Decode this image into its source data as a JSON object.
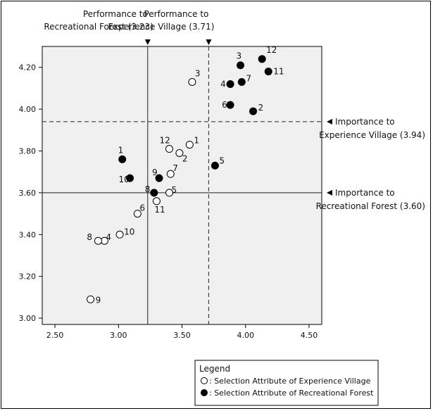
{
  "chart_data": {
    "type": "scatter",
    "xlim": [
      2.4,
      4.6
    ],
    "ylim": [
      2.97,
      4.3
    ],
    "x_ticks": [
      "2.50",
      "3.00",
      "3.50",
      "4.00",
      "4.50"
    ],
    "y_ticks": [
      "3.00",
      "3.20",
      "3.40",
      "3.60",
      "3.80",
      "4.00",
      "4.20"
    ],
    "grid": false,
    "series": [
      {
        "marker": "open-circle",
        "points": [
          {
            "label": "1",
            "x": 3.56,
            "y": 3.83
          },
          {
            "label": "2",
            "x": 3.48,
            "y": 3.79
          },
          {
            "label": "3",
            "x": 3.58,
            "y": 4.13
          },
          {
            "label": "4",
            "x": 2.89,
            "y": 3.37
          },
          {
            "label": "5",
            "x": 3.4,
            "y": 3.6
          },
          {
            "label": "6",
            "x": 3.15,
            "y": 3.5
          },
          {
            "label": "7",
            "x": 3.41,
            "y": 3.69
          },
          {
            "label": "8",
            "x": 2.84,
            "y": 3.37
          },
          {
            "label": "9",
            "x": 2.78,
            "y": 3.09
          },
          {
            "label": "10",
            "x": 3.01,
            "y": 3.4
          },
          {
            "label": "11",
            "x": 3.3,
            "y": 3.56
          },
          {
            "label": "12",
            "x": 3.4,
            "y": 3.81
          }
        ]
      },
      {
        "marker": "filled-circle",
        "points": [
          {
            "label": "1",
            "x": 3.03,
            "y": 3.76
          },
          {
            "label": "2",
            "x": 4.06,
            "y": 3.99
          },
          {
            "label": "3",
            "x": 3.96,
            "y": 4.21
          },
          {
            "label": "4",
            "x": 3.88,
            "y": 4.12
          },
          {
            "label": "5",
            "x": 3.76,
            "y": 3.73
          },
          {
            "label": "6",
            "x": 3.88,
            "y": 4.02
          },
          {
            "label": "7",
            "x": 3.97,
            "y": 4.13
          },
          {
            "label": "8",
            "x": 3.28,
            "y": 3.6
          },
          {
            "label": "9",
            "x": 3.32,
            "y": 3.67
          },
          {
            "label": "10",
            "x": 3.09,
            "y": 3.67
          },
          {
            "label": "11",
            "x": 4.18,
            "y": 4.18
          },
          {
            "label": "12",
            "x": 4.13,
            "y": 4.24
          }
        ]
      }
    ],
    "reference_lines": [
      {
        "axis": "x",
        "value": 3.23,
        "style": "solid",
        "label_lines": [
          "Performance to",
          "Recreational Forest (3.23)"
        ]
      },
      {
        "axis": "x",
        "value": 3.71,
        "style": "dashed",
        "label_lines": [
          "Performance to",
          "Experience Village (3.71)"
        ]
      },
      {
        "axis": "y",
        "value": 3.94,
        "style": "dashed",
        "label_lines": [
          "Importance to",
          "Experience Village (3.94)"
        ]
      },
      {
        "axis": "y",
        "value": 3.6,
        "style": "solid",
        "label_lines": [
          "Importance to",
          "Recreational Forest (3.60)"
        ]
      }
    ],
    "legend": {
      "title": "Legend",
      "position": "bottom-right",
      "entries": [
        {
          "marker": "open-circle",
          "text": " : Selection Attribute of Experience Village"
        },
        {
          "marker": "filled-circle",
          "text": " : Selection Attribute of Recreational Forest"
        }
      ]
    }
  }
}
